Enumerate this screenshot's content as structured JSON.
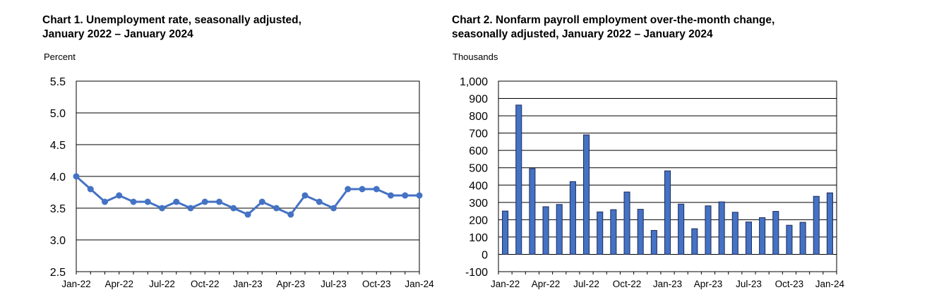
{
  "chart_data": [
    {
      "type": "line",
      "title_lines": [
        "Chart 1. Unemployment rate, seasonally adjusted,",
        "January 2022 – January 2024"
      ],
      "ylabel": "Percent",
      "xlabel": "",
      "ylim": [
        2.5,
        5.5
      ],
      "ytick_labels": [
        "5.5",
        "5.0",
        "4.5",
        "4.0",
        "3.5",
        "3.0",
        "2.5"
      ],
      "ytick_values": [
        5.5,
        5.0,
        4.5,
        4.0,
        3.5,
        3.0,
        2.5
      ],
      "x": [
        "Jan-22",
        "Feb-22",
        "Mar-22",
        "Apr-22",
        "May-22",
        "Jun-22",
        "Jul-22",
        "Aug-22",
        "Sep-22",
        "Oct-22",
        "Nov-22",
        "Dec-22",
        "Jan-23",
        "Feb-23",
        "Mar-23",
        "Apr-23",
        "May-23",
        "Jun-23",
        "Jul-23",
        "Aug-23",
        "Sep-23",
        "Oct-23",
        "Nov-23",
        "Dec-23",
        "Jan-24"
      ],
      "xtick_labels": [
        "Jan-22",
        "Apr-22",
        "Jul-22",
        "Oct-22",
        "Jan-23",
        "Apr-23",
        "Jul-23",
        "Oct-23",
        "Jan-24"
      ],
      "series": [
        {
          "values": [
            4.0,
            3.8,
            3.6,
            3.7,
            3.6,
            3.6,
            3.5,
            3.6,
            3.5,
            3.6,
            3.6,
            3.5,
            3.4,
            3.6,
            3.5,
            3.4,
            3.7,
            3.6,
            3.5,
            3.8,
            3.8,
            3.8,
            3.7,
            3.7,
            3.7
          ]
        }
      ],
      "grid": true,
      "color": "#4472C4"
    },
    {
      "type": "bar",
      "title_lines": [
        "Chart 2. Nonfarm payroll employment over-the-month change,",
        "seasonally adjusted, January 2022 – January 2024"
      ],
      "ylabel": "Thousands",
      "xlabel": "",
      "ylim": [
        -100,
        1000
      ],
      "ytick_labels": [
        "1,000",
        "900",
        "800",
        "700",
        "600",
        "500",
        "400",
        "300",
        "200",
        "100",
        "0",
        "-100"
      ],
      "ytick_values": [
        1000,
        900,
        800,
        700,
        600,
        500,
        400,
        300,
        200,
        100,
        0,
        -100
      ],
      "categories": [
        "Jan-22",
        "Feb-22",
        "Mar-22",
        "Apr-22",
        "May-22",
        "Jun-22",
        "Jul-22",
        "Aug-22",
        "Sep-22",
        "Oct-22",
        "Nov-22",
        "Dec-22",
        "Jan-23",
        "Feb-23",
        "Mar-23",
        "Apr-23",
        "May-23",
        "Jun-23",
        "Jul-23",
        "Aug-23",
        "Sep-23",
        "Oct-23",
        "Nov-23",
        "Dec-23",
        "Jan-24"
      ],
      "xtick_labels": [
        "Jan-22",
        "Apr-22",
        "Jul-22",
        "Oct-22",
        "Jan-23",
        "Apr-23",
        "Jul-23",
        "Oct-23",
        "Jan-24"
      ],
      "series": [
        {
          "values": [
            250,
            862,
            495,
            275,
            288,
            420,
            690,
            245,
            258,
            360,
            260,
            138,
            482,
            290,
            148,
            280,
            303,
            243,
            187,
            212,
            248,
            168,
            185,
            335,
            355
          ]
        }
      ],
      "grid": true,
      "color": "#4472C4",
      "edge_color": "#1f2a5a"
    }
  ]
}
